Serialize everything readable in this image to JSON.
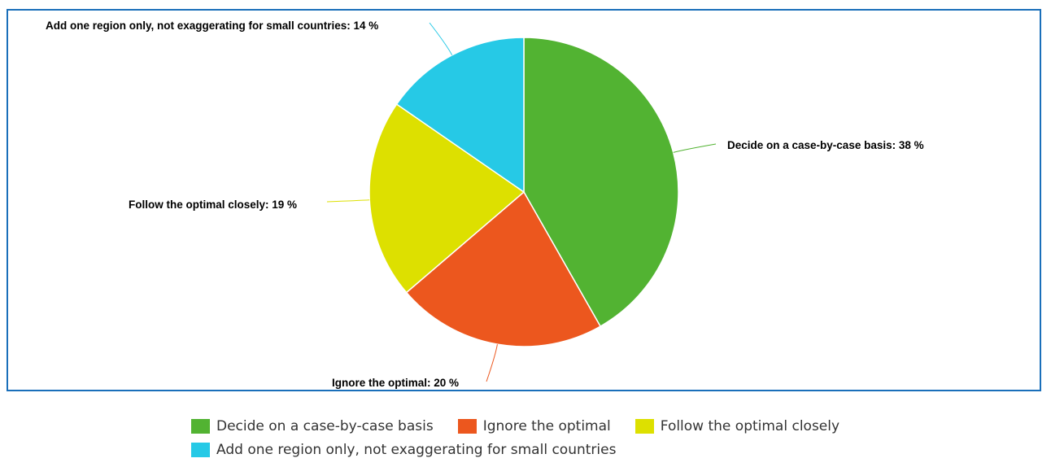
{
  "chart_data": {
    "type": "pie",
    "categories": [
      "Decide on a case-by-case basis",
      "Ignore the optimal",
      "Follow the optimal closely",
      "Add one region only, not exaggerating for small countries"
    ],
    "values": [
      38,
      20,
      19,
      14
    ],
    "unit": "%",
    "colors": [
      "#52b332",
      "#ec571e",
      "#dde000",
      "#26c9e6"
    ],
    "data_labels": [
      "Decide on a case-by-case basis: 38 %",
      "Ignore the optimal: 20 %",
      "Follow the optimal closely: 19 %",
      "Add one region only, not exaggerating for small countries: 14 %"
    ],
    "title": "",
    "legend_position": "bottom"
  },
  "legend": {
    "items": [
      {
        "label": "Decide on a case-by-case basis",
        "color": "#52b332"
      },
      {
        "label": "Ignore the optimal",
        "color": "#ec571e"
      },
      {
        "label": "Follow the optimal closely",
        "color": "#dde000"
      },
      {
        "label": "Add one region only, not exaggerating for small countries",
        "color": "#26c9e6"
      }
    ]
  }
}
